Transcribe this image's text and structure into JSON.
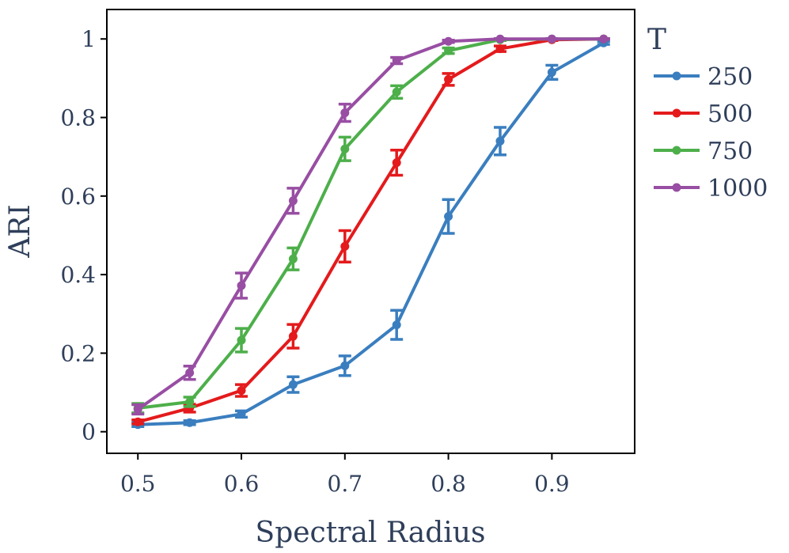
{
  "chart_data": {
    "type": "line",
    "xlabel": "Spectral Radius",
    "ylabel": "ARI",
    "xlim": [
      0.47,
      0.98
    ],
    "ylim": [
      -0.055,
      1.075
    ],
    "x_ticks": [
      0.5,
      0.6,
      0.7,
      0.8,
      0.9
    ],
    "x_tick_labels": [
      "0.5",
      "0.6",
      "0.7",
      "0.8",
      "0.9"
    ],
    "y_ticks": [
      0,
      0.2,
      0.4,
      0.6,
      0.8,
      1.0
    ],
    "y_tick_labels": [
      "0",
      "0.2",
      "0.4",
      "0.6",
      "0.8",
      "1"
    ],
    "grid": false,
    "legend": {
      "title": "T",
      "placement": "outside-right-top"
    },
    "x": [
      0.5,
      0.55,
      0.6,
      0.65,
      0.7,
      0.75,
      0.8,
      0.85,
      0.9,
      0.95
    ],
    "series": [
      {
        "name": "250",
        "color": "#3a7ebf",
        "values": [
          0.018,
          0.023,
          0.045,
          0.12,
          0.168,
          0.272,
          0.548,
          0.74,
          0.915,
          0.99
        ],
        "error": [
          0.005,
          0.005,
          0.008,
          0.02,
          0.025,
          0.037,
          0.043,
          0.035,
          0.018,
          0.004
        ]
      },
      {
        "name": "500",
        "color": "#e41a1c",
        "values": [
          0.025,
          0.06,
          0.105,
          0.243,
          0.472,
          0.685,
          0.897,
          0.975,
          0.998,
          1.0
        ],
        "error": [
          0.005,
          0.01,
          0.015,
          0.03,
          0.04,
          0.032,
          0.015,
          0.007,
          0.002,
          0.001
        ]
      },
      {
        "name": "750",
        "color": "#4daf4a",
        "values": [
          0.06,
          0.076,
          0.233,
          0.44,
          0.72,
          0.865,
          0.97,
          0.998,
          1.0,
          1.0
        ],
        "error": [
          0.012,
          0.012,
          0.03,
          0.028,
          0.03,
          0.016,
          0.007,
          0.002,
          0.001,
          0.001
        ]
      },
      {
        "name": "1000",
        "color": "#984ea3",
        "values": [
          0.057,
          0.15,
          0.372,
          0.588,
          0.812,
          0.945,
          0.994,
          1.0,
          1.0,
          1.0
        ],
        "error": [
          0.012,
          0.017,
          0.032,
          0.032,
          0.022,
          0.008,
          0.003,
          0.001,
          0.001,
          0.001
        ]
      }
    ]
  }
}
